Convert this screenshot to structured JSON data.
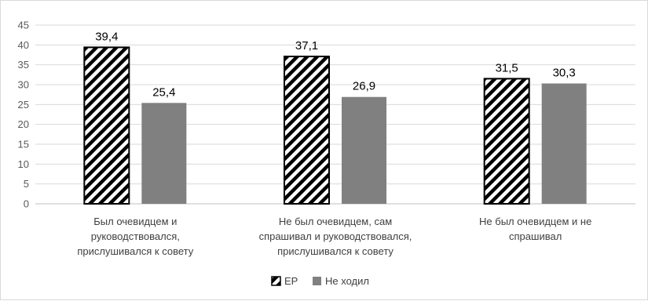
{
  "chart_data": {
    "type": "bar",
    "categories": [
      [
        "Был очевидцем и",
        "руководствовался,",
        "прислушивался к совету"
      ],
      [
        "Не был очевидцем, сам",
        "спрашивал и руководствовался,",
        "прислушивался к совету"
      ],
      [
        "Не был очевидцем и не",
        "спрашивал"
      ]
    ],
    "series": [
      {
        "name": "ЕР",
        "values": [
          39.4,
          37.1,
          31.5
        ],
        "labels": [
          "39,4",
          "37,1",
          "31,5"
        ],
        "fill": "hatched",
        "color": "#000000"
      },
      {
        "name": "Не ходил",
        "values": [
          25.4,
          26.9,
          30.3
        ],
        "labels": [
          "25,4",
          "26,9",
          "30,3"
        ],
        "fill": "solid",
        "color": "#808080"
      }
    ],
    "ylim": [
      0,
      45
    ],
    "yticks": [
      "0",
      "5",
      "10",
      "15",
      "20",
      "25",
      "30",
      "35",
      "40",
      "45"
    ],
    "grid": true,
    "gridline_color": "#d9d9d9",
    "legend_position": "bottom"
  }
}
